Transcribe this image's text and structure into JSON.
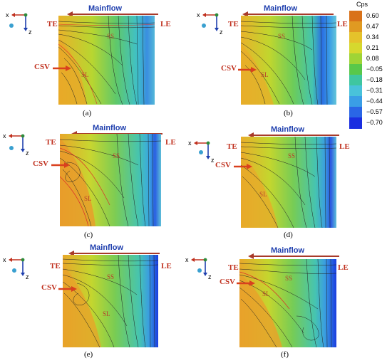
{
  "panels": [
    {
      "id": "a",
      "caption": "(a)",
      "mainflow": "Mainflow",
      "te": "TE",
      "le": "LE",
      "csv": "CSV",
      "ss": "SS",
      "sl": "SL",
      "axis_x": "x",
      "axis_z": "z"
    },
    {
      "id": "b",
      "caption": "(b)",
      "mainflow": "Mainflow",
      "te": "TE",
      "le": "LE",
      "csv": "CSV",
      "ss": "SS",
      "sl": "SL",
      "axis_x": "x",
      "axis_z": "z"
    },
    {
      "id": "c",
      "caption": "(c)",
      "mainflow": "Mainflow",
      "te": "TE",
      "le": "LE",
      "csv": "CSV",
      "ss": "SS",
      "sl": "SL",
      "axis_x": "x",
      "axis_z": "z"
    },
    {
      "id": "d",
      "caption": "(d)",
      "mainflow": "Mainflow",
      "te": "TE",
      "le": "LE",
      "csv": "CSV",
      "ss": "SS",
      "sl": "SL",
      "axis_x": "x",
      "axis_z": "z"
    },
    {
      "id": "e",
      "caption": "(e)",
      "mainflow": "Mainflow",
      "te": "TE",
      "le": "LE",
      "csv": "CSV",
      "ss": "SS",
      "sl": "SL",
      "axis_x": "x",
      "axis_z": "z"
    },
    {
      "id": "f",
      "caption": "(f)",
      "mainflow": "Mainflow",
      "te": "TE",
      "le": "LE",
      "csv": "CSV",
      "ss": "SS",
      "sl": "SL",
      "axis_x": "x",
      "axis_z": "z"
    }
  ],
  "colorbar": {
    "title": "Cps",
    "ticks": [
      "0.60",
      "0.47",
      "0.34",
      "0.21",
      "0.08",
      "−0.05",
      "−0.18",
      "−0.31",
      "−0.44",
      "−0.57",
      "−0.70"
    ],
    "colors": [
      "#d9721a",
      "#e09a22",
      "#e5c22b",
      "#d6d82e",
      "#9fd436",
      "#58c84a",
      "#3fc6a0",
      "#49c2da",
      "#3a9ee6",
      "#2a66e6",
      "#1a2ee0"
    ]
  }
}
